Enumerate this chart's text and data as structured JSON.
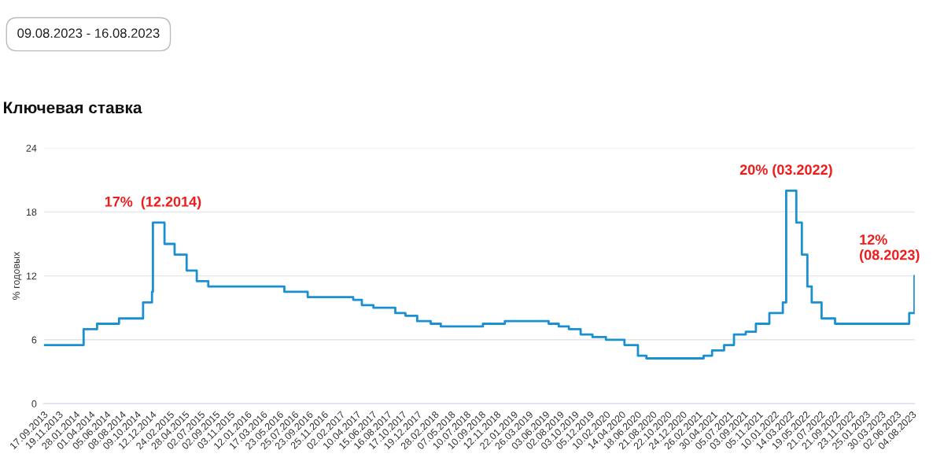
{
  "chart_data": {
    "type": "step",
    "title": "Ключевая ставка",
    "ylabel": "% годовых",
    "annotations": [
      "09.08.2023 - 16.08.2023",
      {
        "text": "17%  (12.2014)",
        "x": "2014-12-16",
        "y": 17
      },
      {
        "text": "20% (03.2022)",
        "x": "2022-02-28",
        "y": 20
      },
      {
        "text": "12%\n(08.2023)",
        "x": "2023-08-15",
        "y": 12
      }
    ],
    "x": [
      "2013-09-17",
      "2014-03-03",
      "2014-04-28",
      "2014-07-28",
      "2014-11-05",
      "2014-12-12",
      "2014-12-16",
      "2015-02-02",
      "2015-03-16",
      "2015-05-05",
      "2015-06-16",
      "2015-08-03",
      "2016-06-14",
      "2016-09-19",
      "2017-03-27",
      "2017-05-02",
      "2017-06-19",
      "2017-09-18",
      "2017-10-30",
      "2017-12-18",
      "2018-02-12",
      "2018-03-26",
      "2018-09-17",
      "2018-12-17",
      "2019-06-17",
      "2019-07-29",
      "2019-09-09",
      "2019-10-28",
      "2019-12-16",
      "2020-02-10",
      "2020-04-27",
      "2020-06-22",
      "2020-07-27",
      "2021-03-22",
      "2021-04-26",
      "2021-06-15",
      "2021-07-26",
      "2021-09-13",
      "2021-10-25",
      "2021-12-20",
      "2022-02-14",
      "2022-02-28",
      "2022-04-11",
      "2022-05-04",
      "2022-05-27",
      "2022-06-14",
      "2022-07-25",
      "2022-09-19",
      "2023-07-24",
      "2023-08-15",
      "2023-08-16"
    ],
    "series": [
      {
        "color": "#1a8fd1",
        "values": [
          5.5,
          7,
          7.5,
          8,
          9.5,
          10.5,
          17,
          15,
          14,
          12.5,
          11.5,
          11,
          10.5,
          10,
          9.75,
          9.25,
          9,
          8.5,
          8.25,
          7.75,
          7.5,
          7.25,
          7.5,
          7.75,
          7.5,
          7.25,
          7,
          6.5,
          6.25,
          6,
          5.5,
          4.5,
          4.25,
          4.5,
          5,
          5.5,
          6.5,
          6.75,
          7.5,
          8.5,
          9.5,
          20,
          17,
          14,
          11,
          9.5,
          8,
          7.5,
          8.5,
          12,
          12
        ]
      }
    ],
    "xlim": [
      "2013-09-17",
      "2023-08-16"
    ],
    "xticks": [
      {
        "value": "2013-09-17",
        "label": "17.09.2013"
      },
      {
        "value": "2013-11-19",
        "label": "19.11.2013"
      },
      {
        "value": "2014-01-28",
        "label": "28.01.2014"
      },
      {
        "value": "2014-04-01",
        "label": "01.04.2014"
      },
      {
        "value": "2014-06-05",
        "label": "05.06.2014"
      },
      {
        "value": "2014-08-08",
        "label": "08.08.2014"
      },
      {
        "value": "2014-10-09",
        "label": "09.10.2014"
      },
      {
        "value": "2014-12-12",
        "label": "12.12.2014"
      },
      {
        "value": "2015-02-24",
        "label": "24.02.2015"
      },
      {
        "value": "2015-04-28",
        "label": "28.04.2015"
      },
      {
        "value": "2015-07-02",
        "label": "02.07.2015"
      },
      {
        "value": "2015-09-02",
        "label": "02.09.2015"
      },
      {
        "value": "2015-11-03",
        "label": "03.11.2015"
      },
      {
        "value": "2016-01-12",
        "label": "12.01.2016"
      },
      {
        "value": "2016-03-17",
        "label": "17.03.2016"
      },
      {
        "value": "2016-05-23",
        "label": "23.05.2016"
      },
      {
        "value": "2016-07-25",
        "label": "25.07.2016"
      },
      {
        "value": "2016-09-23",
        "label": "23.09.2016"
      },
      {
        "value": "2016-11-25",
        "label": "25.11.2016"
      },
      {
        "value": "2017-02-02",
        "label": "02.02.2017"
      },
      {
        "value": "2017-04-10",
        "label": "10.04.2017"
      },
      {
        "value": "2017-06-15",
        "label": "15.06.2017"
      },
      {
        "value": "2017-08-16",
        "label": "16.08.2017"
      },
      {
        "value": "2017-10-17",
        "label": "17.10.2017"
      },
      {
        "value": "2017-12-19",
        "label": "19.12.2017"
      },
      {
        "value": "2018-02-28",
        "label": "28.02.2018"
      },
      {
        "value": "2018-05-07",
        "label": "07.05.2018"
      },
      {
        "value": "2018-07-10",
        "label": "10.07.2018"
      },
      {
        "value": "2018-09-10",
        "label": "10.09.2018"
      },
      {
        "value": "2018-11-12",
        "label": "12.11.2018"
      },
      {
        "value": "2019-01-22",
        "label": "22.01.2019"
      },
      {
        "value": "2019-03-26",
        "label": "26.03.2019"
      },
      {
        "value": "2019-06-03",
        "label": "03.06.2019"
      },
      {
        "value": "2019-08-02",
        "label": "02.08.2019"
      },
      {
        "value": "2019-10-03",
        "label": "03.10.2019"
      },
      {
        "value": "2019-12-05",
        "label": "05.12.2019"
      },
      {
        "value": "2020-02-10",
        "label": "10.02.2020"
      },
      {
        "value": "2020-04-14",
        "label": "14.04.2020"
      },
      {
        "value": "2020-06-18",
        "label": "18.06.2020"
      },
      {
        "value": "2020-08-21",
        "label": "21.08.2020"
      },
      {
        "value": "2020-10-22",
        "label": "22.10.2020"
      },
      {
        "value": "2020-12-24",
        "label": "24.12.2020"
      },
      {
        "value": "2021-02-26",
        "label": "26.02.2021"
      },
      {
        "value": "2021-04-30",
        "label": "30.04.2021"
      },
      {
        "value": "2021-07-05",
        "label": "05.07.2021"
      },
      {
        "value": "2021-09-03",
        "label": "03.09.2021"
      },
      {
        "value": "2021-11-05",
        "label": "05.11.2021"
      },
      {
        "value": "2022-01-10",
        "label": "10.01.2022"
      },
      {
        "value": "2022-03-14",
        "label": "14.03.2022"
      },
      {
        "value": "2022-05-19",
        "label": "19.05.2022"
      },
      {
        "value": "2022-07-21",
        "label": "21.07.2022"
      },
      {
        "value": "2022-09-21",
        "label": "21.09.2022"
      },
      {
        "value": "2022-11-23",
        "label": "23.11.2022"
      },
      {
        "value": "2023-01-25",
        "label": "25.01.2023"
      },
      {
        "value": "2023-03-30",
        "label": "30.03.2023"
      },
      {
        "value": "2023-06-02",
        "label": "02.06.2023"
      },
      {
        "value": "2023-08-04",
        "label": "04.08.2023"
      }
    ],
    "ylim": [
      0,
      24
    ],
    "yticks": [
      0,
      6,
      12,
      18,
      24
    ],
    "grid": "y",
    "legend": false
  }
}
